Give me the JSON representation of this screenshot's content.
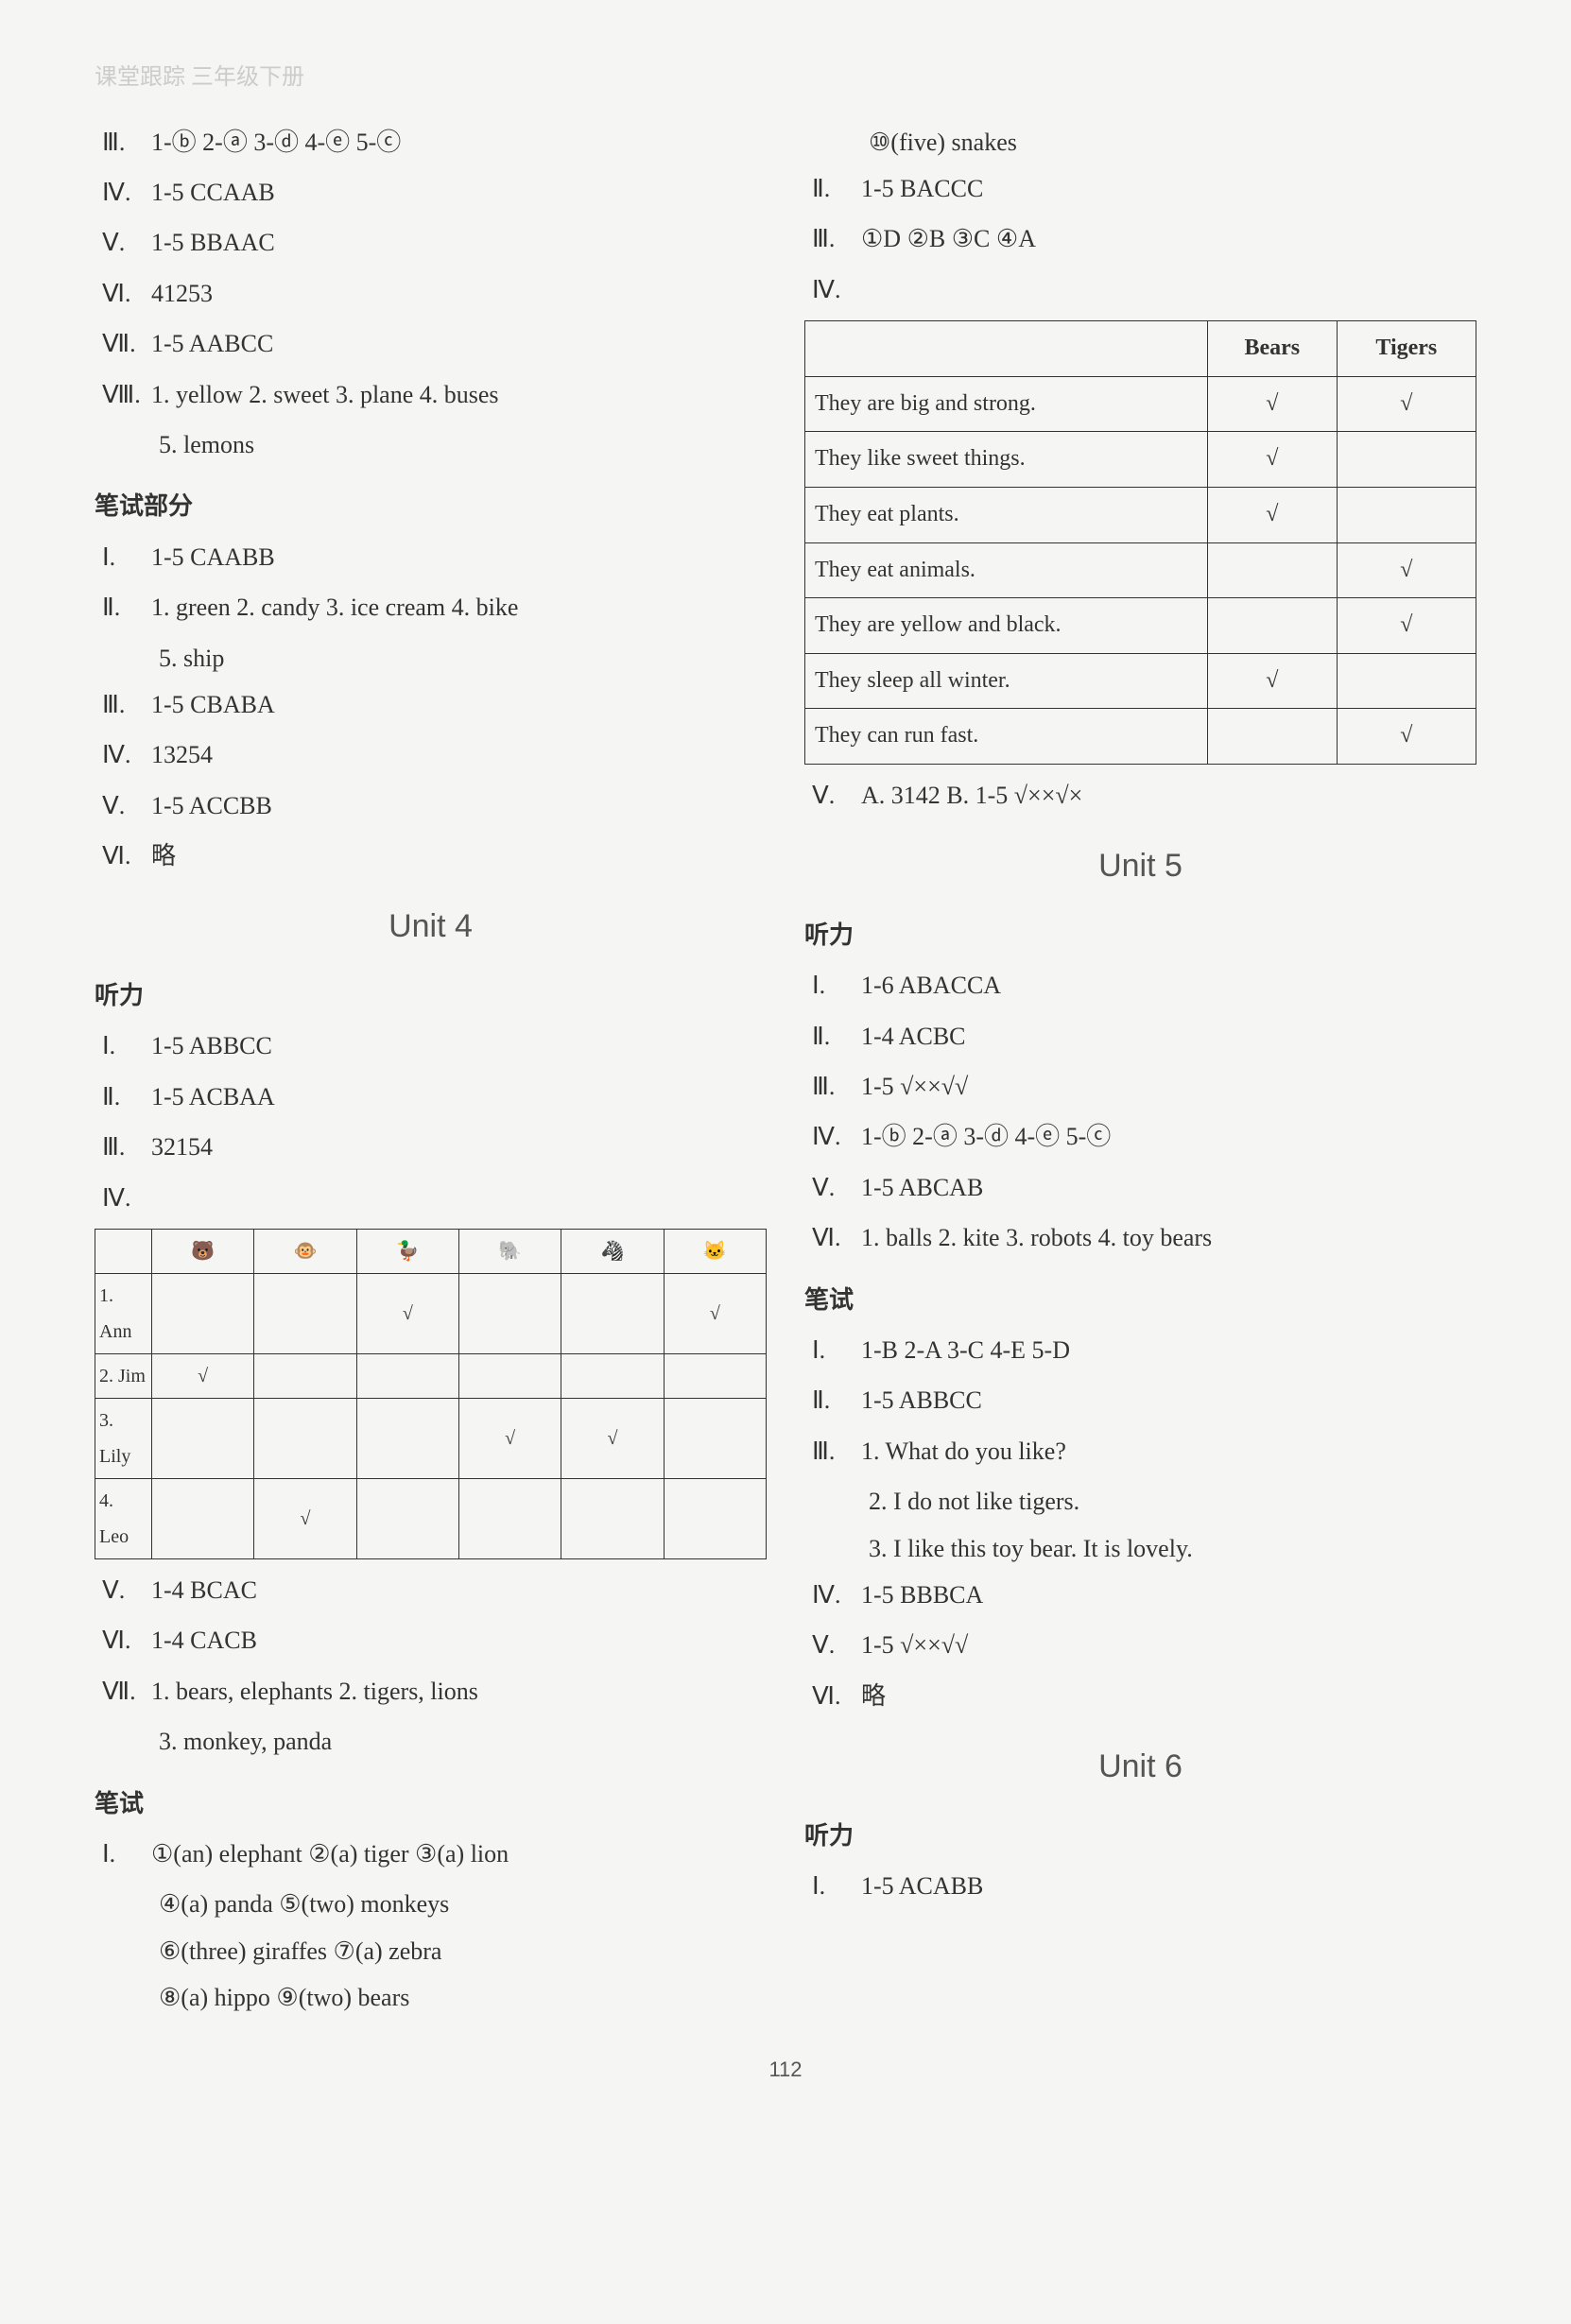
{
  "header": "课堂跟踪  三年级下册",
  "page_number": "112",
  "left": {
    "top": {
      "r3": "1-ⓑ  2-ⓐ  3-ⓓ  4-ⓔ  5-ⓒ",
      "r4": "1-5   CCAAB",
      "r5": "1-5   BBAAC",
      "r6": "41253",
      "r7": "1-5   AABCC",
      "r8a": "1. yellow   2. sweet   3. plane   4. buses",
      "r8b": "5. lemons"
    },
    "written": {
      "title": "笔试部分",
      "r1": "1-5   CAABB",
      "r2a": "1. green   2. candy   3. ice cream   4. bike",
      "r2b": "5. ship",
      "r3": "1-5   CBABA",
      "r4": "13254",
      "r5": "1-5   ACCBB",
      "r6": "略"
    },
    "unit4": {
      "title": "Unit 4",
      "listen_title": "听力",
      "r1": "1-5   ABBCC",
      "r2": "1-5   ACBAA",
      "r3": "32154",
      "r4": "",
      "table": {
        "rows": [
          "1. Ann",
          "2. Jim",
          "3. Lily",
          "4. Leo"
        ],
        "cols": 6,
        "marks": {
          "0": [
            0,
            0,
            1,
            0,
            0,
            1
          ],
          "1": [
            1,
            0,
            0,
            0,
            0,
            0
          ],
          "2": [
            0,
            0,
            0,
            1,
            1,
            0
          ],
          "3": [
            0,
            1,
            0,
            0,
            0,
            0
          ]
        },
        "icons": [
          "🐻",
          "🐵",
          "🦆",
          "🐘",
          "🦓",
          "🐱"
        ]
      },
      "r5": "1-4   BCAC",
      "r6": "1-4   CACB",
      "r7a": "1. bears, elephants   2. tigers, lions",
      "r7b": "3. monkey, panda",
      "write_title": "笔试",
      "w1a": "①(an) elephant   ②(a) tiger   ③(a) lion",
      "w1b": "④(a) panda   ⑤(two) monkeys",
      "w1c": "⑥(three) giraffes   ⑦(a) zebra",
      "w1d": "⑧(a) hippo   ⑨(two) bears"
    }
  },
  "right": {
    "top": {
      "cont": "⑩(five) snakes",
      "r2": "1-5   BACCC",
      "r3": "①D   ②B   ③C   ④A",
      "r4": "",
      "table": {
        "head": [
          "",
          "Bears",
          "Tigers"
        ],
        "rows": [
          [
            "They are big and strong.",
            "√",
            "√"
          ],
          [
            "They like sweet things.",
            "√",
            ""
          ],
          [
            "They eat plants.",
            "√",
            ""
          ],
          [
            "They eat animals.",
            "",
            "√"
          ],
          [
            "They are yellow and black.",
            "",
            "√"
          ],
          [
            "They sleep all winter.",
            "√",
            ""
          ],
          [
            "They can run fast.",
            "",
            "√"
          ]
        ]
      },
      "r5": "A. 3142       B. 1-5   √××√×"
    },
    "unit5": {
      "title": "Unit 5",
      "listen_title": "听力",
      "r1": "1-6   ABACCA",
      "r2": "1-4   ACBC",
      "r3": "1-5   √××√√",
      "r4": "1-ⓑ   2-ⓐ   3-ⓓ   4-ⓔ   5-ⓒ",
      "r5": "1-5   ABCAB",
      "r6": "1. balls   2. kite   3. robots   4. toy bears",
      "write_title": "笔试",
      "w1": "1-B   2-A   3-C   4-E   5-D",
      "w2": "1-5   ABBCC",
      "w3a": "1. What do you like?",
      "w3b": "2. I do not like tigers.",
      "w3c": "3. I like this toy bear. It is lovely.",
      "w4": "1-5   BBBCA",
      "w5": "1-5   √××√√",
      "w6": "略"
    },
    "unit6": {
      "title": "Unit 6",
      "listen_title": "听力",
      "r1": "1-5   ACABB"
    }
  }
}
